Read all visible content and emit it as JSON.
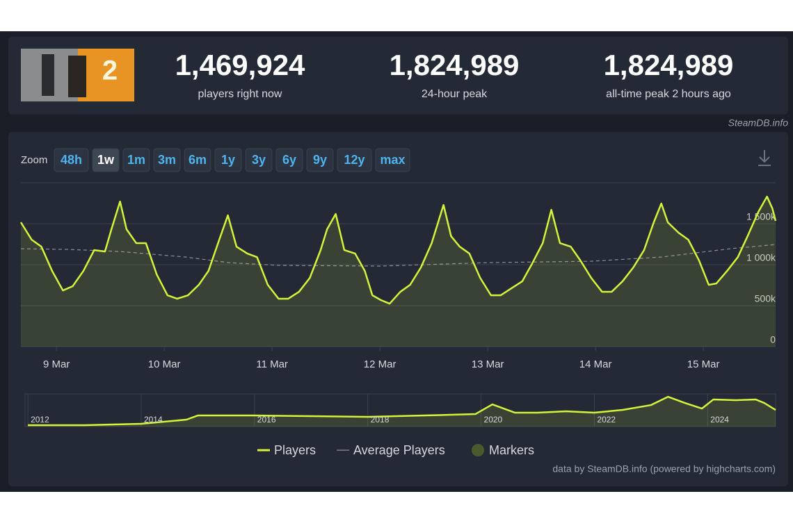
{
  "header": {
    "stats": [
      {
        "value": "1,469,924",
        "label": "players right now"
      },
      {
        "value": "1,824,989",
        "label": "24-hour peak"
      },
      {
        "value": "1,824,989",
        "label": "all-time peak 2 hours ago"
      }
    ]
  },
  "watermark": "SteamDB.info",
  "zoom": {
    "label": "Zoom",
    "buttons": [
      "48h",
      "1w",
      "1m",
      "3m",
      "6m",
      "1y",
      "3y",
      "6y",
      "9y",
      "12y",
      "max"
    ],
    "selected": 1
  },
  "chart_data": {
    "type": "line",
    "xlim": [
      8.67,
      15.67
    ],
    "xticks": [
      {
        "value": 9,
        "label": "9 Mar"
      },
      {
        "value": 10,
        "label": "10 Mar"
      },
      {
        "value": 11,
        "label": "11 Mar"
      },
      {
        "value": 12,
        "label": "12 Mar"
      },
      {
        "value": 13,
        "label": "13 Mar"
      },
      {
        "value": 14,
        "label": "14 Mar"
      },
      {
        "value": 15,
        "label": "15 Mar"
      }
    ],
    "ylim": [
      0,
      2000000
    ],
    "yticks": [
      0,
      {
        "value": 500000,
        "label": "500k"
      },
      {
        "value": 1000000,
        "label": "1 000k"
      },
      {
        "value": 1500000,
        "label": "1 500k"
      }
    ],
    "grid": true,
    "series": [
      {
        "name": "Players",
        "color": "#d2f53a",
        "area": true,
        "x": [
          8.67,
          8.77,
          8.86,
          8.96,
          9.06,
          9.15,
          9.25,
          9.35,
          9.45,
          9.51,
          9.59,
          9.65,
          9.74,
          9.83,
          9.93,
          10.03,
          10.12,
          10.22,
          10.32,
          10.41,
          10.51,
          10.59,
          10.67,
          10.77,
          10.86,
          10.96,
          11.06,
          11.15,
          11.25,
          11.35,
          11.45,
          11.51,
          11.59,
          11.67,
          11.77,
          11.86,
          11.93,
          12.01,
          12.09,
          12.19,
          12.28,
          12.38,
          12.48,
          12.54,
          12.59,
          12.66,
          12.74,
          12.83,
          12.93,
          13.03,
          13.12,
          13.22,
          13.32,
          13.41,
          13.51,
          13.59,
          13.67,
          13.77,
          13.86,
          13.96,
          14.06,
          14.15,
          14.25,
          14.35,
          14.45,
          14.54,
          14.61,
          14.67,
          14.77,
          14.86,
          14.96,
          15.05,
          15.12,
          15.22,
          15.32,
          15.41,
          15.51,
          15.59,
          15.64,
          15.67
        ],
        "values": [
          1517000,
          1305000,
          1220000,
          924000,
          686000,
          737000,
          924000,
          1178000,
          1161000,
          1432000,
          1771000,
          1432000,
          1263000,
          1263000,
          881000,
          627000,
          585000,
          627000,
          754000,
          924000,
          1305000,
          1602000,
          1220000,
          1136000,
          1093000,
          754000,
          585000,
          585000,
          670000,
          839000,
          1178000,
          1432000,
          1619000,
          1178000,
          1136000,
          924000,
          627000,
          568000,
          525000,
          670000,
          754000,
          966000,
          1263000,
          1517000,
          1729000,
          1348000,
          1220000,
          1136000,
          839000,
          627000,
          627000,
          712000,
          797000,
          1009000,
          1263000,
          1670000,
          1263000,
          1220000,
          1051000,
          839000,
          670000,
          670000,
          797000,
          966000,
          1178000,
          1517000,
          1746000,
          1517000,
          1390000,
          1305000,
          1051000,
          754000,
          771000,
          924000,
          1093000,
          1348000,
          1644000,
          1831000,
          1686000,
          1534000
        ]
      },
      {
        "name": "Average Players",
        "color": "#8a8f96",
        "dashed": true,
        "x": [
          8.67,
          9.1,
          9.59,
          10.2,
          10.6,
          11.06,
          12.0,
          13.0,
          13.96,
          14.61,
          15.25,
          15.67
        ],
        "values": [
          1195000,
          1187000,
          1161000,
          1093000,
          1025000,
          992000,
          983000,
          1025000,
          1042000,
          1093000,
          1195000,
          1246000
        ]
      }
    ],
    "markers_legend": {
      "name": "Markers",
      "color": "#4b5a2c"
    }
  },
  "navigator": {
    "type": "line",
    "color": "#d2f53a",
    "xlim": [
      2011.95,
      2025.2
    ],
    "xticks": [
      2012,
      2014,
      2016,
      2018,
      2020,
      2022,
      2024
    ],
    "ylim": [
      0,
      2000000
    ],
    "x": [
      2012.0,
      2013.0,
      2014.0,
      2014.8,
      2015.0,
      2016.0,
      2017.0,
      2018.0,
      2019.0,
      2019.9,
      2020.2,
      2020.6,
      2021.0,
      2021.5,
      2022.0,
      2022.5,
      2023.0,
      2023.3,
      2023.6,
      2023.9,
      2024.1,
      2024.5,
      2024.85,
      2025.0,
      2025.2
    ],
    "values": [
      85000,
      85000,
      170000,
      425000,
      680000,
      680000,
      640000,
      595000,
      680000,
      765000,
      1360000,
      850000,
      850000,
      935000,
      850000,
      1020000,
      1317000,
      1827000,
      1445000,
      1105000,
      1657000,
      1615000,
      1657000,
      1445000,
      1020000
    ]
  },
  "credits": "data by SteamDB.info (powered by highcharts.com)"
}
